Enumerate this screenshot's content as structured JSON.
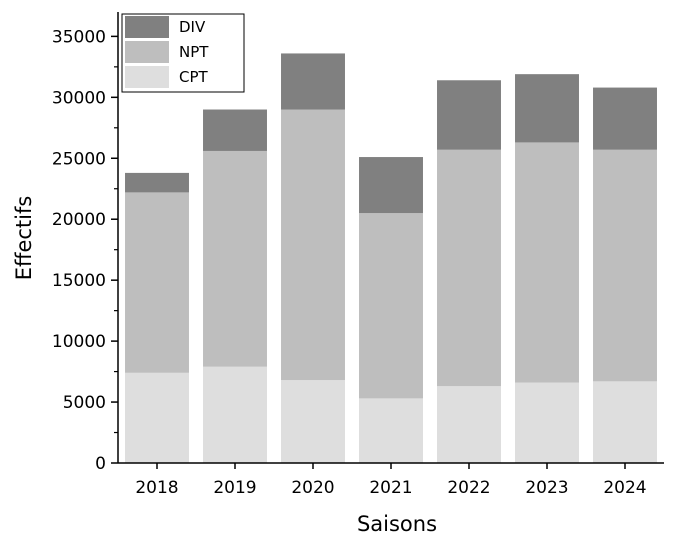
{
  "chart_data": {
    "type": "bar",
    "stacked": true,
    "title": "",
    "xlabel": "Saisons",
    "ylabel": "Effectifs",
    "categories": [
      "2018",
      "2019",
      "2020",
      "2021",
      "2022",
      "2023",
      "2024"
    ],
    "series": [
      {
        "name": "CPT",
        "color": "#dedede",
        "values": [
          7400,
          7900,
          6800,
          5300,
          6300,
          6600,
          6700
        ]
      },
      {
        "name": "NPT",
        "color": "#bebebe",
        "values": [
          14800,
          17700,
          22200,
          15200,
          19400,
          19700,
          19000
        ]
      },
      {
        "name": "DIV",
        "color": "#808080",
        "values": [
          1600,
          3400,
          4600,
          4600,
          5700,
          5600,
          5100
        ]
      }
    ],
    "ylim": [
      0,
      37000
    ],
    "yticks": [
      0,
      5000,
      10000,
      15000,
      20000,
      25000,
      30000,
      35000
    ],
    "grid": false,
    "legend_position": "top-left"
  }
}
